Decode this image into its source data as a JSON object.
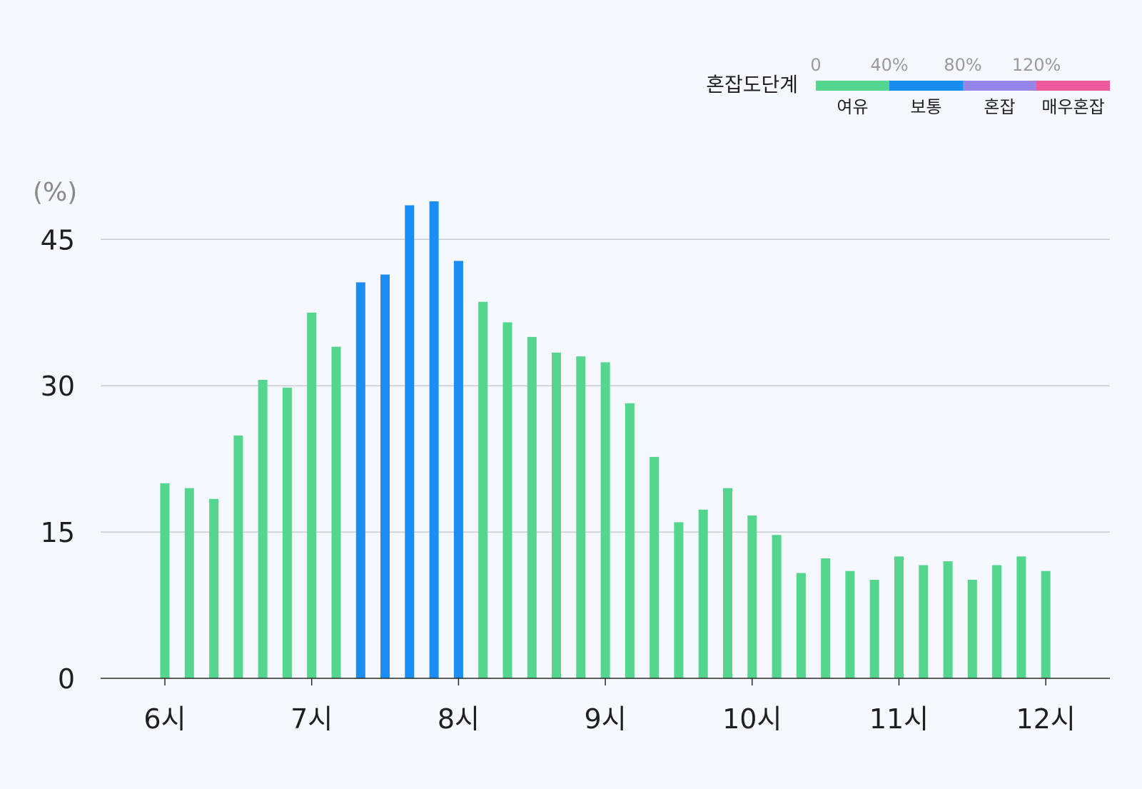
{
  "chart_data": {
    "type": "bar",
    "ylabel": "(%)",
    "ylim": [
      0,
      50
    ],
    "yticks": [
      "0",
      "15",
      "30",
      "45"
    ],
    "ytick_values": [
      0,
      15,
      30,
      45
    ],
    "xticks": [
      "6시",
      "7시",
      "8시",
      "9시",
      "10시",
      "11시",
      "12시"
    ],
    "x_start_hour": 6,
    "x_end_hour": 12,
    "grid": true,
    "series": [
      {
        "values": [
          20.0,
          19.5,
          18.4,
          24.9,
          30.6,
          29.8,
          37.5,
          34.0,
          40.6,
          41.4,
          48.5,
          48.9,
          42.8,
          38.6,
          36.5,
          35.0,
          33.4,
          33.0,
          32.4,
          28.2,
          22.7,
          16.0,
          17.3,
          19.5,
          16.7,
          14.7,
          10.8,
          12.3,
          11.0,
          10.1,
          12.5,
          11.6,
          12.0,
          10.1,
          11.6,
          12.5,
          11.0
        ],
        "levels": [
          0,
          0,
          0,
          0,
          0,
          0,
          0,
          0,
          1,
          1,
          1,
          1,
          1,
          0,
          0,
          0,
          0,
          0,
          0,
          0,
          0,
          0,
          0,
          0,
          0,
          0,
          0,
          0,
          0,
          0,
          0,
          0,
          0,
          0,
          0,
          0,
          0
        ]
      }
    ],
    "legend": {
      "title": "혼잡도단계",
      "placement": "top-right",
      "thresholds": [
        "0",
        "40%",
        "80%",
        "120%"
      ],
      "categories": [
        {
          "label": "여유",
          "color": "#55d68f"
        },
        {
          "label": "보통",
          "color": "#1a8ef5"
        },
        {
          "label": "혼잡",
          "color": "#9585e6"
        },
        {
          "label": "매우혼잡",
          "color": "#ef5a9c"
        }
      ]
    },
    "colors": {
      "grid": "#c9cdd2",
      "axis": "#2a2a2a"
    }
  }
}
